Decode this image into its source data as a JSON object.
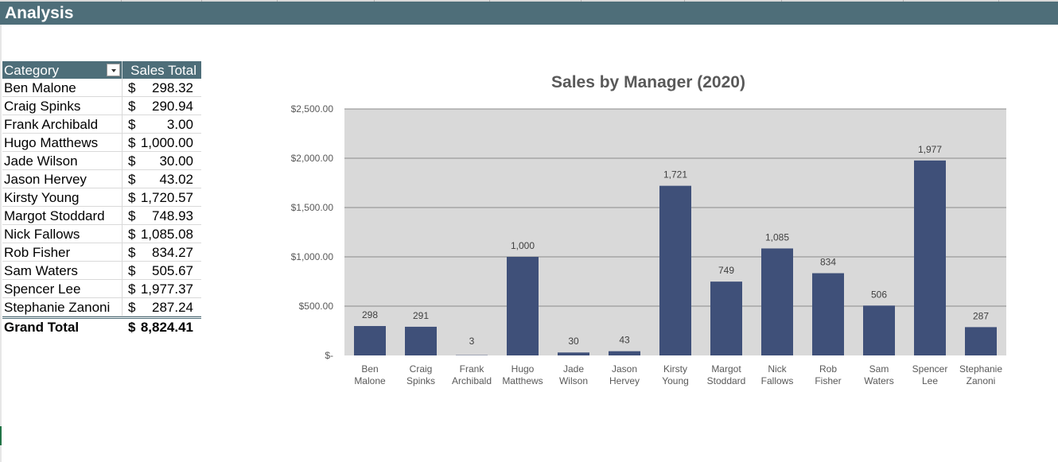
{
  "sheet": {
    "banner_title": "Analysis"
  },
  "pivot": {
    "header": {
      "category": "Category",
      "sales_total": "Sales Total"
    },
    "rows": [
      {
        "name": "Ben Malone",
        "currency": "$",
        "value": "298.32"
      },
      {
        "name": "Craig Spinks",
        "currency": "$",
        "value": "290.94"
      },
      {
        "name": "Frank Archibald",
        "currency": "$",
        "value": "3.00"
      },
      {
        "name": "Hugo Matthews",
        "currency": "$",
        "value": "1,000.00"
      },
      {
        "name": "Jade Wilson",
        "currency": "$",
        "value": "30.00"
      },
      {
        "name": "Jason Hervey",
        "currency": "$",
        "value": "43.02"
      },
      {
        "name": "Kirsty Young",
        "currency": "$",
        "value": "1,720.57"
      },
      {
        "name": "Margot Stoddard",
        "currency": "$",
        "value": "748.93"
      },
      {
        "name": "Nick Fallows",
        "currency": "$",
        "value": "1,085.08"
      },
      {
        "name": "Rob Fisher",
        "currency": "$",
        "value": "834.27"
      },
      {
        "name": "Sam Waters",
        "currency": "$",
        "value": "505.67"
      },
      {
        "name": "Spencer Lee",
        "currency": "$",
        "value": "1,977.37"
      },
      {
        "name": "Stephanie Zanoni",
        "currency": "$",
        "value": "287.24"
      }
    ],
    "total": {
      "label": "Grand Total",
      "currency": "$",
      "value": "8,824.41"
    }
  },
  "colors": {
    "header_fill": "#4e6e79",
    "bar_fill": "#3f5079",
    "plot_area_fill": "#d9d9d9"
  },
  "chart_data": {
    "type": "bar",
    "title": "Sales by Manager (2020)",
    "categories": [
      [
        "Ben",
        "Malone"
      ],
      [
        "Craig",
        "Spinks"
      ],
      [
        "Frank",
        "Archibald"
      ],
      [
        "Hugo",
        "Matthews"
      ],
      [
        "Jade",
        "Wilson"
      ],
      [
        "Jason",
        "Hervey"
      ],
      [
        "Kirsty",
        "Young"
      ],
      [
        "Margot",
        "Stoddard"
      ],
      [
        "Nick",
        "Fallows"
      ],
      [
        "Rob",
        "Fisher"
      ],
      [
        "Sam",
        "Waters"
      ],
      [
        "Spencer",
        "Lee"
      ],
      [
        "Stephanie",
        "Zanoni"
      ]
    ],
    "values": [
      298.32,
      290.94,
      3.0,
      1000.0,
      30.0,
      43.02,
      1720.57,
      748.93,
      1085.08,
      834.27,
      505.67,
      1977.37,
      287.24
    ],
    "data_labels": [
      "298",
      "291",
      "3",
      "1,000",
      "30",
      "43",
      "1,721",
      "749",
      "1,085",
      "834",
      "506",
      "1,977",
      "287"
    ],
    "ylim": [
      0,
      2500
    ],
    "yticks": [
      0,
      500,
      1000,
      1500,
      2000,
      2500
    ],
    "ytick_labels": [
      "$-",
      "$500.00",
      "$1,000.00",
      "$1,500.00",
      "$2,000.00",
      "$2,500.00"
    ],
    "grid": true,
    "legend": "none"
  }
}
